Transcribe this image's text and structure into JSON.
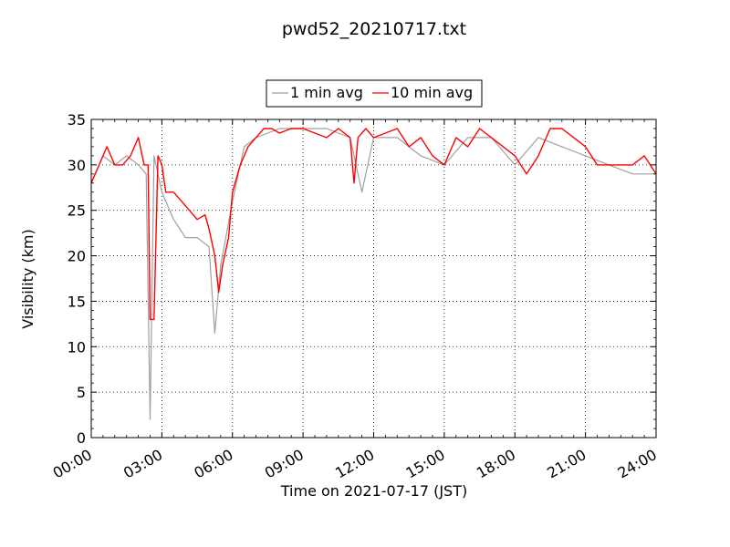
{
  "chart_data": {
    "type": "line",
    "title": "pwd52_20210717.txt",
    "xlabel": "Time on 2021-07-17 (JST)",
    "ylabel": "Visibility (km)",
    "xlim": [
      "00:00",
      "24:00"
    ],
    "ylim": [
      0,
      35
    ],
    "x_tick_labels": [
      "00:00",
      "03:00",
      "06:00",
      "09:00",
      "12:00",
      "15:00",
      "18:00",
      "21:00",
      "24:00"
    ],
    "y_tick_labels": [
      "0",
      "5",
      "10",
      "15",
      "20",
      "25",
      "30",
      "35"
    ],
    "grid": true,
    "legend_position": "top-center, above plot",
    "series": [
      {
        "name": "1 min avg",
        "color": "#a0a0a0",
        "x": [
          "00:00",
          "00:30",
          "01:00",
          "01:30",
          "02:00",
          "02:20",
          "02:30",
          "02:40",
          "03:00",
          "03:30",
          "04:00",
          "04:30",
          "05:00",
          "05:15",
          "05:30",
          "06:00",
          "06:30",
          "07:00",
          "08:00",
          "09:00",
          "10:00",
          "11:00",
          "11:30",
          "12:00",
          "13:00",
          "14:00",
          "15:00",
          "16:00",
          "17:00",
          "18:00",
          "19:00",
          "20:00",
          "21:00",
          "22:00",
          "23:00",
          "24:00"
        ],
        "values": [
          28,
          31,
          30,
          31,
          30,
          29,
          2,
          31,
          27,
          24,
          22,
          22,
          21,
          11.5,
          19,
          26,
          32,
          33,
          34,
          34,
          34,
          33,
          27,
          33,
          33,
          31,
          30,
          33,
          33,
          30,
          33,
          32,
          31,
          30,
          29,
          29
        ]
      },
      {
        "name": "10 min avg",
        "color": "#ff0000",
        "x": [
          "00:00",
          "00:20",
          "00:40",
          "01:00",
          "01:20",
          "01:40",
          "02:00",
          "02:15",
          "02:25",
          "02:30",
          "02:40",
          "02:50",
          "03:00",
          "03:10",
          "03:30",
          "03:50",
          "04:10",
          "04:30",
          "04:50",
          "05:00",
          "05:15",
          "05:25",
          "05:35",
          "05:50",
          "06:00",
          "06:20",
          "06:40",
          "07:00",
          "07:20",
          "07:40",
          "08:00",
          "08:30",
          "09:00",
          "09:30",
          "10:00",
          "10:30",
          "11:00",
          "11:10",
          "11:20",
          "11:40",
          "12:00",
          "12:30",
          "13:00",
          "13:30",
          "14:00",
          "14:30",
          "15:00",
          "15:30",
          "16:00",
          "16:30",
          "17:00",
          "17:30",
          "18:00",
          "18:30",
          "19:00",
          "19:30",
          "20:00",
          "20:30",
          "21:00",
          "21:30",
          "22:00",
          "22:30",
          "23:00",
          "23:30",
          "24:00"
        ],
        "values": [
          28,
          30,
          32,
          30,
          30,
          31,
          33,
          30,
          30,
          13,
          13,
          31,
          30,
          27,
          27,
          26,
          25,
          24,
          24.5,
          23,
          20,
          16,
          19,
          22,
          27,
          30,
          32,
          33,
          34,
          34,
          33.5,
          34,
          34,
          33.5,
          33,
          34,
          33,
          28,
          33,
          34,
          33,
          33.5,
          34,
          32,
          33,
          31,
          30,
          33,
          32,
          34,
          33,
          32,
          31,
          29,
          31,
          34,
          34,
          33,
          32,
          30,
          30,
          30,
          30,
          31,
          29
        ]
      }
    ]
  }
}
